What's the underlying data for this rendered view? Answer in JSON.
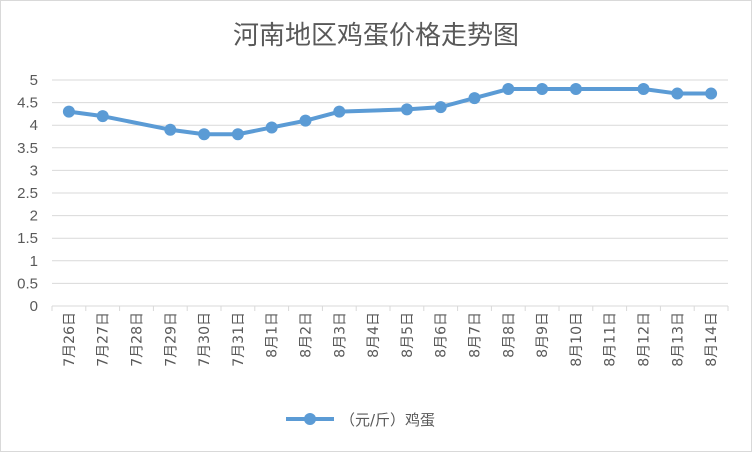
{
  "chart_data": {
    "type": "line",
    "title": "河南地区鸡蛋价格走势图",
    "xlabel": "",
    "ylabel": "",
    "ylim": [
      0,
      5
    ],
    "yticks": [
      "0",
      "0.5",
      "1",
      "1.5",
      "2",
      "2.5",
      "3",
      "3.5",
      "4",
      "4.5",
      "5"
    ],
    "grid": "horizontal",
    "legend_position": "bottom",
    "categories": [
      "7月26日",
      "7月27日",
      "7月28日",
      "7月29日",
      "7月30日",
      "7月31日",
      "8月1日",
      "8月2日",
      "8月3日",
      "8月4日",
      "8月5日",
      "8月6日",
      "8月7日",
      "8月8日",
      "8月9日",
      "8月10日",
      "8月11日",
      "8月12日",
      "8月13日",
      "8月14日"
    ],
    "series": [
      {
        "name": "（元/斤）鸡蛋",
        "color": "#5b9bd5",
        "values": [
          4.3,
          4.2,
          null,
          3.9,
          3.8,
          3.8,
          3.95,
          4.1,
          4.3,
          null,
          4.35,
          4.4,
          4.6,
          4.8,
          4.8,
          4.8,
          null,
          4.8,
          4.7,
          4.7
        ]
      }
    ]
  },
  "colors": {
    "line": "#5b9bd5",
    "grid": "#d9d9d9",
    "text": "#595959"
  }
}
